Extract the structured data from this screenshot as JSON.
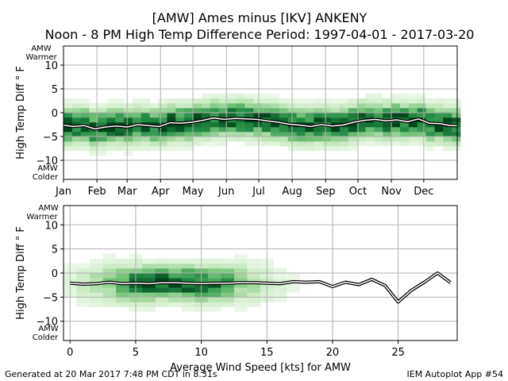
{
  "title_line1": "[AMW] Ames minus [IKV] ANKENY",
  "title_line2": "Noon - 8 PM High Temp Difference Period: 1997-04-01 - 2017-03-20",
  "footer_left": "Generated at 20 Mar 2017 7:48 PM CDT in 8.31s",
  "footer_right": "IEM Autoplot App #54",
  "colors": {
    "line_outer": "#000000",
    "line_inner": "#ffffff",
    "heat_max": "#00441b",
    "heat_min": "#f7fcf5"
  },
  "chart_data": [
    {
      "type": "heatmap",
      "xlabel": "",
      "ylabel": "High Temp Diff ° F",
      "top_annotation": [
        "AMW",
        "Warmer"
      ],
      "bottom_annotation": [
        "AMW",
        "Colder"
      ],
      "xlim": [
        1,
        366
      ],
      "ylim": [
        -14,
        14
      ],
      "xticks": [
        {
          "label": "Jan",
          "value": 1
        },
        {
          "label": "Feb",
          "value": 32
        },
        {
          "label": "Mar",
          "value": 60
        },
        {
          "label": "Apr",
          "value": 91
        },
        {
          "label": "May",
          "value": 121
        },
        {
          "label": "Jun",
          "value": 152
        },
        {
          "label": "Jul",
          "value": 182
        },
        {
          "label": "Aug",
          "value": 213
        },
        {
          "label": "Sep",
          "value": 244
        },
        {
          "label": "Oct",
          "value": 274
        },
        {
          "label": "Nov",
          "value": 305
        },
        {
          "label": "Dec",
          "value": 335
        }
      ],
      "yticks": [
        {
          "label": "−10",
          "value": -10
        },
        {
          "label": "−5",
          "value": -5
        },
        {
          "label": "0",
          "value": 0
        },
        {
          "label": "5",
          "value": 5
        },
        {
          "label": "10",
          "value": 10
        }
      ],
      "grid": true,
      "mean_line": {
        "x": [
          1,
          10,
          20,
          30,
          40,
          50,
          60,
          70,
          80,
          90,
          100,
          110,
          120,
          130,
          140,
          150,
          160,
          170,
          180,
          190,
          200,
          210,
          220,
          230,
          240,
          250,
          260,
          270,
          280,
          290,
          300,
          310,
          320,
          330,
          340,
          350,
          360,
          366
        ],
        "y": [
          -2.6,
          -2.9,
          -2.7,
          -3.4,
          -3.0,
          -2.8,
          -3.0,
          -2.5,
          -2.7,
          -2.9,
          -2.1,
          -2.2,
          -2.0,
          -1.6,
          -1.1,
          -1.4,
          -1.2,
          -1.3,
          -1.4,
          -1.7,
          -2.0,
          -2.4,
          -2.6,
          -2.9,
          -2.5,
          -2.8,
          -2.6,
          -2.0,
          -1.6,
          -1.4,
          -1.7,
          -1.5,
          -1.9,
          -1.3,
          -2.2,
          -2.3,
          -2.7,
          -2.7
        ]
      }
    },
    {
      "type": "heatmap",
      "xlabel": "Average Wind Speed [kts] for AMW",
      "ylabel": "High Temp Diff ° F",
      "top_annotation": [
        "AMW",
        "Warmer"
      ],
      "bottom_annotation": [
        "AMW",
        "Colder"
      ],
      "xlim": [
        -0.5,
        29.5
      ],
      "ylim": [
        -14,
        14
      ],
      "xticks": [
        {
          "label": "0",
          "value": 0
        },
        {
          "label": "5",
          "value": 5
        },
        {
          "label": "10",
          "value": 10
        },
        {
          "label": "15",
          "value": 15
        },
        {
          "label": "20",
          "value": 20
        },
        {
          "label": "25",
          "value": 25
        }
      ],
      "yticks": [
        {
          "label": "−10",
          "value": -10
        },
        {
          "label": "−5",
          "value": -5
        },
        {
          "label": "0",
          "value": 0
        },
        {
          "label": "5",
          "value": 5
        },
        {
          "label": "10",
          "value": 10
        }
      ],
      "grid": true,
      "mean_line": {
        "x": [
          0,
          1,
          2,
          3,
          4,
          5,
          6,
          7,
          8,
          9,
          10,
          11,
          12,
          13,
          14,
          15,
          16,
          17,
          18,
          19,
          20,
          21,
          22,
          23,
          24,
          25,
          26,
          27,
          28,
          29
        ],
        "y": [
          -2.1,
          -2.3,
          -2.2,
          -1.9,
          -2.2,
          -2.1,
          -2.2,
          -2.0,
          -2.0,
          -2.1,
          -2.2,
          -2.1,
          -2.1,
          -2.0,
          -2.0,
          -2.1,
          -2.2,
          -1.8,
          -1.9,
          -1.8,
          -2.8,
          -1.9,
          -2.4,
          -1.3,
          -2.6,
          -6.0,
          -3.6,
          -1.9,
          0.0,
          -2.0
        ]
      }
    }
  ]
}
